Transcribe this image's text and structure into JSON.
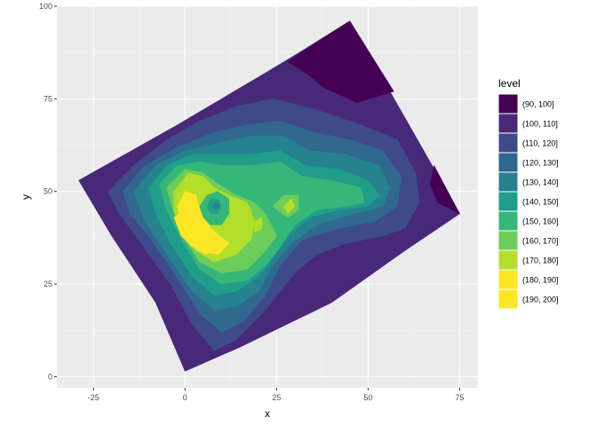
{
  "chart_data": {
    "type": "filled-contour",
    "title": "",
    "xlabel": "x",
    "ylabel": "y",
    "xlim": [
      -35,
      80
    ],
    "ylim": [
      -3,
      100
    ],
    "xticks": [
      "-25",
      "0",
      "25",
      "50",
      "75"
    ],
    "yticks": [
      "0",
      "25",
      "50",
      "75",
      "100"
    ],
    "grid": true,
    "legend": {
      "title": "level",
      "placement": "right",
      "entries": [
        {
          "label": "(90, 100]",
          "color": "#440154"
        },
        {
          "label": "(100, 110]",
          "color": "#482878"
        },
        {
          "label": "(110, 120]",
          "color": "#3E4A89"
        },
        {
          "label": "(120, 130]",
          "color": "#31688E"
        },
        {
          "label": "(130, 140]",
          "color": "#26828E"
        },
        {
          "label": "(140, 150]",
          "color": "#1F9E89"
        },
        {
          "label": "(150, 160]",
          "color": "#35B779"
        },
        {
          "label": "(160, 170]",
          "color": "#6DCD59"
        },
        {
          "label": "(170, 180]",
          "color": "#B4DE2C"
        },
        {
          "label": "(180, 190]",
          "color": "#FDE725"
        },
        {
          "label": "(190, 200]",
          "color": "#FDE725"
        }
      ]
    },
    "domain_corners": [
      [
        -29,
        53
      ],
      [
        45,
        96
      ],
      [
        75,
        44
      ],
      [
        0,
        1.5
      ]
    ],
    "regions": [
      {
        "level": "(100, 110]",
        "points": [
          [
            -29,
            53
          ],
          [
            -2,
            68
          ],
          [
            22,
            82
          ],
          [
            32,
            88
          ],
          [
            45,
            96
          ],
          [
            75,
            44
          ],
          [
            60,
            34
          ],
          [
            40,
            20
          ],
          [
            15,
            8
          ],
          [
            0,
            1.5
          ],
          [
            -8,
            20
          ],
          [
            -20,
            38
          ]
        ]
      },
      {
        "level": "(90, 100]",
        "points": [
          [
            28,
            85
          ],
          [
            45,
            96
          ],
          [
            57,
            77
          ],
          [
            47,
            74
          ],
          [
            38,
            78
          ],
          [
            33,
            82
          ]
        ]
      },
      {
        "level": "(90, 100]",
        "points": [
          [
            68,
            57
          ],
          [
            75,
            44
          ],
          [
            69,
            47
          ],
          [
            67,
            52
          ]
        ]
      },
      {
        "level": "(110, 120]",
        "points": [
          [
            -21,
            50
          ],
          [
            -14,
            57
          ],
          [
            -5,
            64
          ],
          [
            4,
            69
          ],
          [
            14,
            73
          ],
          [
            24,
            75
          ],
          [
            36,
            72
          ],
          [
            48,
            68
          ],
          [
            58,
            64
          ],
          [
            63,
            55
          ],
          [
            64,
            47
          ],
          [
            60,
            40
          ],
          [
            54,
            38
          ],
          [
            44,
            36
          ],
          [
            36,
            33
          ],
          [
            30,
            28
          ],
          [
            22,
            18
          ],
          [
            14,
            10
          ],
          [
            8,
            7
          ],
          [
            2,
            14
          ],
          [
            -4,
            25
          ],
          [
            -12,
            36
          ],
          [
            -18,
            44
          ]
        ]
      },
      {
        "level": "(120, 130]",
        "points": [
          [
            -17,
            50
          ],
          [
            -11,
            57
          ],
          [
            -2,
            62
          ],
          [
            8,
            66
          ],
          [
            17,
            68
          ],
          [
            26,
            69
          ],
          [
            35,
            66
          ],
          [
            45,
            64
          ],
          [
            54,
            61
          ],
          [
            59,
            54
          ],
          [
            58,
            46
          ],
          [
            52,
            42
          ],
          [
            42,
            40
          ],
          [
            32,
            37
          ],
          [
            26,
            30
          ],
          [
            22,
            22
          ],
          [
            16,
            15
          ],
          [
            10,
            12
          ],
          [
            4,
            17
          ],
          [
            -3,
            28
          ],
          [
            -10,
            38
          ],
          [
            -15,
            44
          ]
        ]
      },
      {
        "level": "(130, 140]",
        "points": [
          [
            -14,
            50
          ],
          [
            -8,
            57
          ],
          [
            0,
            61
          ],
          [
            9,
            63
          ],
          [
            18,
            65
          ],
          [
            27,
            65
          ],
          [
            34,
            61
          ],
          [
            44,
            60
          ],
          [
            53,
            57
          ],
          [
            56,
            51
          ],
          [
            54,
            46
          ],
          [
            46,
            44
          ],
          [
            36,
            41
          ],
          [
            29,
            36
          ],
          [
            24,
            30
          ],
          [
            20,
            23
          ],
          [
            14,
            19
          ],
          [
            8,
            18
          ],
          [
            2,
            23
          ],
          [
            -5,
            33
          ],
          [
            -11,
            42
          ]
        ]
      },
      {
        "level": "(140, 150]",
        "points": [
          [
            -10,
            51
          ],
          [
            -5,
            57
          ],
          [
            2,
            60
          ],
          [
            10,
            60
          ],
          [
            18,
            60
          ],
          [
            26,
            61
          ],
          [
            33,
            57
          ],
          [
            42,
            56
          ],
          [
            50,
            53
          ],
          [
            53,
            49
          ],
          [
            50,
            46
          ],
          [
            42,
            45
          ],
          [
            34,
            43
          ],
          [
            28,
            38
          ],
          [
            24,
            32
          ],
          [
            20,
            27
          ],
          [
            14,
            23
          ],
          [
            8,
            22
          ],
          [
            2,
            27
          ],
          [
            -4,
            36
          ],
          [
            -8,
            44
          ]
        ]
      },
      {
        "level": "(150, 160]",
        "points": [
          [
            -7,
            52
          ],
          [
            -2,
            57
          ],
          [
            4,
            58
          ],
          [
            10,
            57
          ],
          [
            18,
            57
          ],
          [
            26,
            58
          ],
          [
            32,
            54
          ],
          [
            40,
            53
          ],
          [
            48,
            51
          ],
          [
            49,
            47
          ],
          [
            44,
            46
          ],
          [
            36,
            45
          ],
          [
            30,
            41
          ],
          [
            26,
            35
          ],
          [
            22,
            30
          ],
          [
            17,
            26
          ],
          [
            10,
            25
          ],
          [
            4,
            29
          ],
          [
            -1,
            37
          ],
          [
            -5,
            45
          ]
        ]
      },
      {
        "level": "(160, 170]",
        "points": [
          [
            -5,
            51
          ],
          [
            0,
            56
          ],
          [
            5,
            55
          ],
          [
            9,
            52
          ],
          [
            14,
            49
          ],
          [
            19,
            47
          ],
          [
            22,
            44
          ],
          [
            25,
            38
          ],
          [
            22,
            34
          ],
          [
            17,
            29
          ],
          [
            10,
            28
          ],
          [
            4,
            31
          ],
          [
            0,
            37
          ],
          [
            -3,
            44
          ]
        ]
      },
      {
        "level": "(160, 170]",
        "points": [
          [
            24,
            46
          ],
          [
            27,
            49
          ],
          [
            31,
            49
          ],
          [
            31,
            45
          ],
          [
            28,
            43
          ]
        ]
      },
      {
        "level": "(170, 180]",
        "points": [
          [
            -3,
            50
          ],
          [
            1,
            55
          ],
          [
            5,
            54
          ],
          [
            8,
            51
          ],
          [
            12,
            49
          ],
          [
            17,
            47
          ],
          [
            19,
            42
          ],
          [
            18,
            37
          ],
          [
            14,
            33
          ],
          [
            8,
            31
          ],
          [
            3,
            34
          ],
          [
            -1,
            40
          ],
          [
            -3,
            45
          ]
        ]
      },
      {
        "level": "(170, 180]",
        "points": [
          [
            27,
            46
          ],
          [
            29,
            48
          ],
          [
            30,
            46
          ],
          [
            28,
            44
          ]
        ]
      },
      {
        "level": "(170, 180]",
        "points": [
          [
            19,
            42
          ],
          [
            21,
            43
          ],
          [
            21,
            40
          ],
          [
            19,
            39
          ]
        ]
      },
      {
        "level": "(180, 190]",
        "points": [
          [
            -2,
            46
          ],
          [
            0,
            50
          ],
          [
            3,
            49
          ],
          [
            4,
            45
          ],
          [
            7,
            40
          ],
          [
            12,
            36
          ],
          [
            9,
            33
          ],
          [
            4,
            34
          ],
          [
            0,
            38
          ]
        ]
      },
      {
        "level": "(190, 200]",
        "points": [
          [
            -3,
            43
          ],
          [
            0,
            45
          ],
          [
            2,
            42
          ],
          [
            5,
            38
          ],
          [
            8,
            35
          ],
          [
            6,
            33
          ],
          [
            2,
            35
          ],
          [
            -1,
            38
          ]
        ]
      },
      {
        "level": "(150, 160]",
        "points": [
          [
            4,
            46
          ],
          [
            6,
            49
          ],
          [
            9,
            50
          ],
          [
            12,
            48
          ],
          [
            12,
            44
          ],
          [
            10,
            41
          ],
          [
            7,
            41
          ],
          [
            5,
            43
          ]
        ]
      },
      {
        "level": "(140, 150]",
        "points": [
          [
            6,
            46
          ],
          [
            7,
            48
          ],
          [
            9,
            48
          ],
          [
            10,
            46
          ],
          [
            9,
            44
          ],
          [
            7,
            44
          ]
        ]
      },
      {
        "level": "(130, 140]",
        "points": [
          [
            7.5,
            46
          ],
          [
            8.5,
            47
          ],
          [
            9.5,
            46
          ],
          [
            8.5,
            45
          ]
        ]
      }
    ]
  }
}
